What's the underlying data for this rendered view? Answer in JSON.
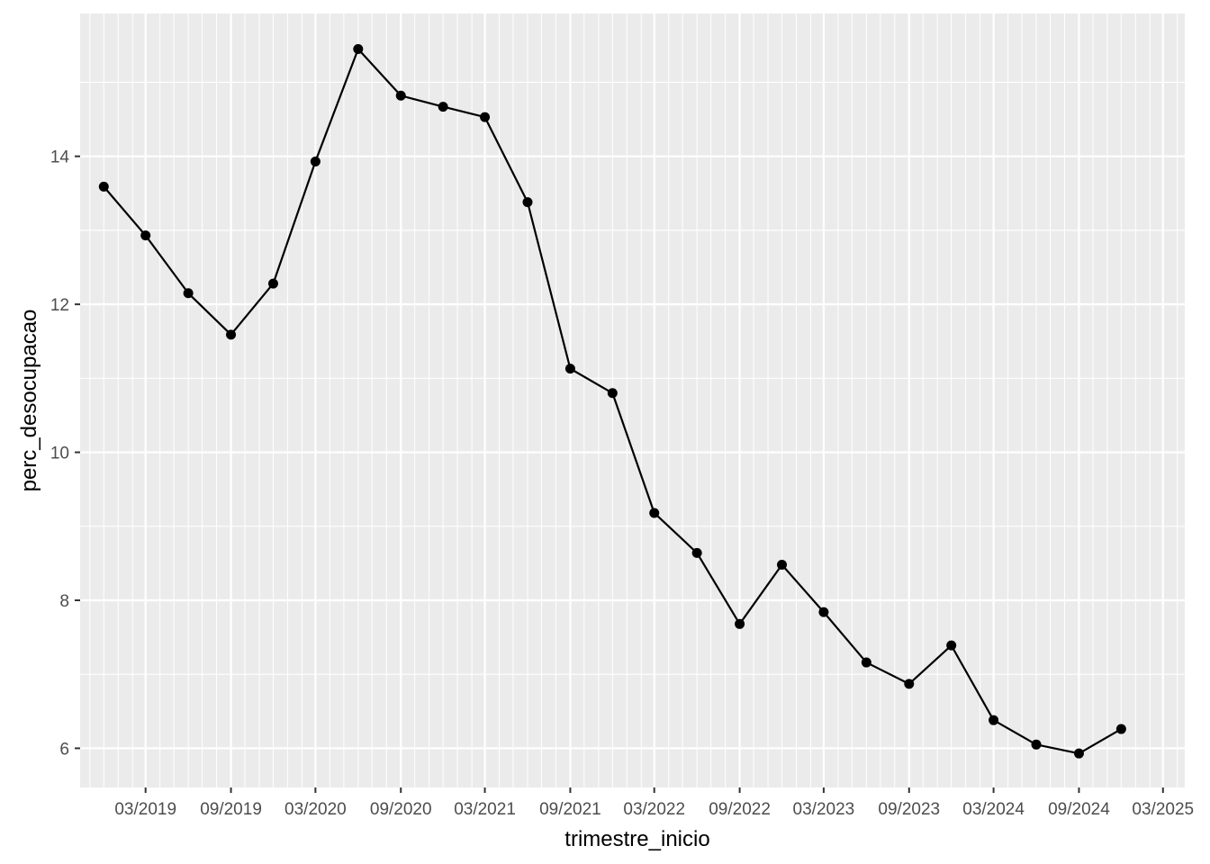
{
  "chart_data": {
    "type": "line",
    "xlabel": "trimestre_inicio",
    "ylabel": "perc_desocupacao",
    "x_tick_labels": [
      "03/2019",
      "09/2019",
      "03/2020",
      "09/2020",
      "03/2021",
      "09/2021",
      "03/2022",
      "09/2022",
      "03/2023",
      "09/2023",
      "03/2024",
      "09/2024",
      "03/2025"
    ],
    "x_tick_dates": [
      "2019-03-01",
      "2019-09-01",
      "2020-03-01",
      "2020-09-01",
      "2021-03-01",
      "2021-09-01",
      "2022-03-01",
      "2022-09-01",
      "2023-03-01",
      "2023-09-01",
      "2024-03-01",
      "2024-09-01",
      "2025-03-01"
    ],
    "xlim": [
      "2018-10-11",
      "2025-04-17"
    ],
    "y_ticks": [
      6,
      8,
      10,
      12,
      14
    ],
    "ylim": [
      5.47,
      15.93
    ],
    "grid": true,
    "series": [
      {
        "x": [
          "2018-12-01",
          "2019-03-01",
          "2019-06-01",
          "2019-09-01",
          "2019-12-01",
          "2020-03-01",
          "2020-06-01",
          "2020-09-01",
          "2020-12-01",
          "2021-03-01",
          "2021-06-01",
          "2021-09-01",
          "2021-12-01",
          "2022-03-01",
          "2022-06-01",
          "2022-09-01",
          "2022-12-01",
          "2023-03-01",
          "2023-06-01",
          "2023-09-01",
          "2023-12-01",
          "2024-03-01",
          "2024-06-01",
          "2024-09-01",
          "2024-12-01"
        ],
        "values": [
          13.59,
          12.93,
          12.15,
          11.59,
          12.28,
          13.93,
          15.45,
          14.82,
          14.67,
          14.53,
          13.38,
          11.13,
          10.8,
          9.18,
          8.64,
          7.68,
          8.48,
          7.84,
          7.16,
          6.87,
          7.39,
          6.38,
          6.05,
          5.93,
          6.26
        ]
      }
    ]
  }
}
